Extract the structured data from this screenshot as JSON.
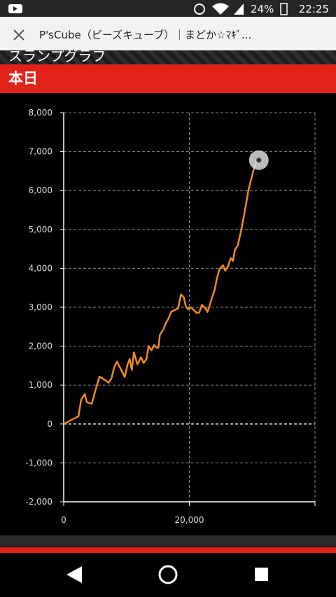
{
  "status_bar": {
    "battery": "24%",
    "time": "22:25"
  },
  "browser": {
    "title": "P'sCube（ピーズキューブ）｜まどか☆ﾏｷﾞ..."
  },
  "section": {
    "title": "スランプグラフ",
    "tab": "本日"
  },
  "chart_data": {
    "type": "line",
    "x": [
      0,
      2350,
      2790,
      3350,
      3690,
      4470,
      5030,
      5700,
      6590,
      7150,
      7600,
      8040,
      8490,
      9270,
      9720,
      10170,
      10500,
      10840,
      11170,
      11730,
      12290,
      12740,
      13180,
      13520,
      13970,
      14410,
      14750,
      15080,
      15310,
      15870,
      16310,
      16650,
      17090,
      17650,
      18210,
      18660,
      19110,
      19440,
      19780,
      20220,
      20670,
      21120,
      21560,
      22010,
      22570,
      22900,
      23350,
      23690,
      24020,
      24360,
      24800,
      25360,
      25700,
      26150,
      26590,
      26930,
      27260,
      27710,
      28160,
      28600,
      29050,
      29380,
      29830,
      30280,
      30720,
      31060
    ],
    "series": [
      {
        "color": "#f08c1e",
        "values": [
          0,
          200,
          630,
          770,
          560,
          520,
          850,
          1220,
          1130,
          1060,
          1170,
          1460,
          1600,
          1350,
          1210,
          1530,
          1670,
          1390,
          1840,
          1530,
          1710,
          1570,
          1670,
          2000,
          1890,
          2030,
          1960,
          1960,
          2290,
          2430,
          2610,
          2700,
          2880,
          2930,
          2970,
          3330,
          3260,
          3020,
          2950,
          3000,
          2930,
          2860,
          2860,
          3060,
          2970,
          2880,
          3110,
          3290,
          3440,
          3720,
          3980,
          4080,
          3940,
          4050,
          4260,
          4190,
          4480,
          4590,
          4910,
          5270,
          5670,
          5990,
          6280,
          6570,
          6750,
          6780
        ]
      }
    ],
    "xlim": [
      0,
      40000
    ],
    "xticks": [
      0,
      {
        "value": 20000,
        "label": "20,000"
      }
    ],
    "ylim": [
      -2000,
      8000
    ],
    "yticks": [
      {
        "value": -2000,
        "label": "-2,000"
      },
      {
        "value": -1000,
        "label": "-1,000"
      },
      0,
      {
        "value": 1000,
        "label": "1,000"
      },
      {
        "value": 2000,
        "label": "2,000"
      },
      {
        "value": 3000,
        "label": "3,000"
      },
      {
        "value": 4000,
        "label": "4,000"
      },
      {
        "value": 5000,
        "label": "5,000"
      },
      {
        "value": 6000,
        "label": "6,000"
      },
      {
        "value": 7000,
        "label": "7,000"
      },
      {
        "value": 8000,
        "label": "8,000"
      }
    ],
    "grid": true
  }
}
